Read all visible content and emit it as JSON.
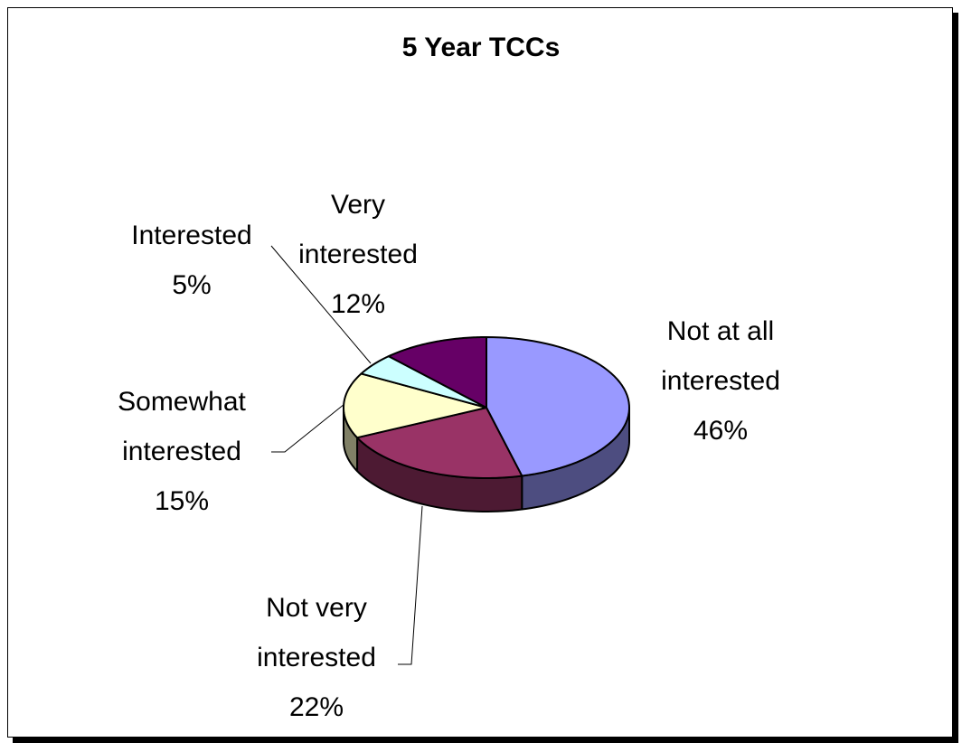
{
  "chart_data": {
    "type": "pie3d",
    "title": "5 Year TCCs",
    "categories": [
      "Not at all interested",
      "Not very interested",
      "Somewhat interested",
      "Interested",
      "Very interested"
    ],
    "values": [
      46,
      22,
      15,
      5,
      12
    ],
    "value_labels": [
      "46%",
      "22%",
      "15%",
      "5%",
      "12%"
    ],
    "colors": [
      "#9999ff",
      "#993366",
      "#ffffcc",
      "#ccffff",
      "#660066"
    ]
  }
}
